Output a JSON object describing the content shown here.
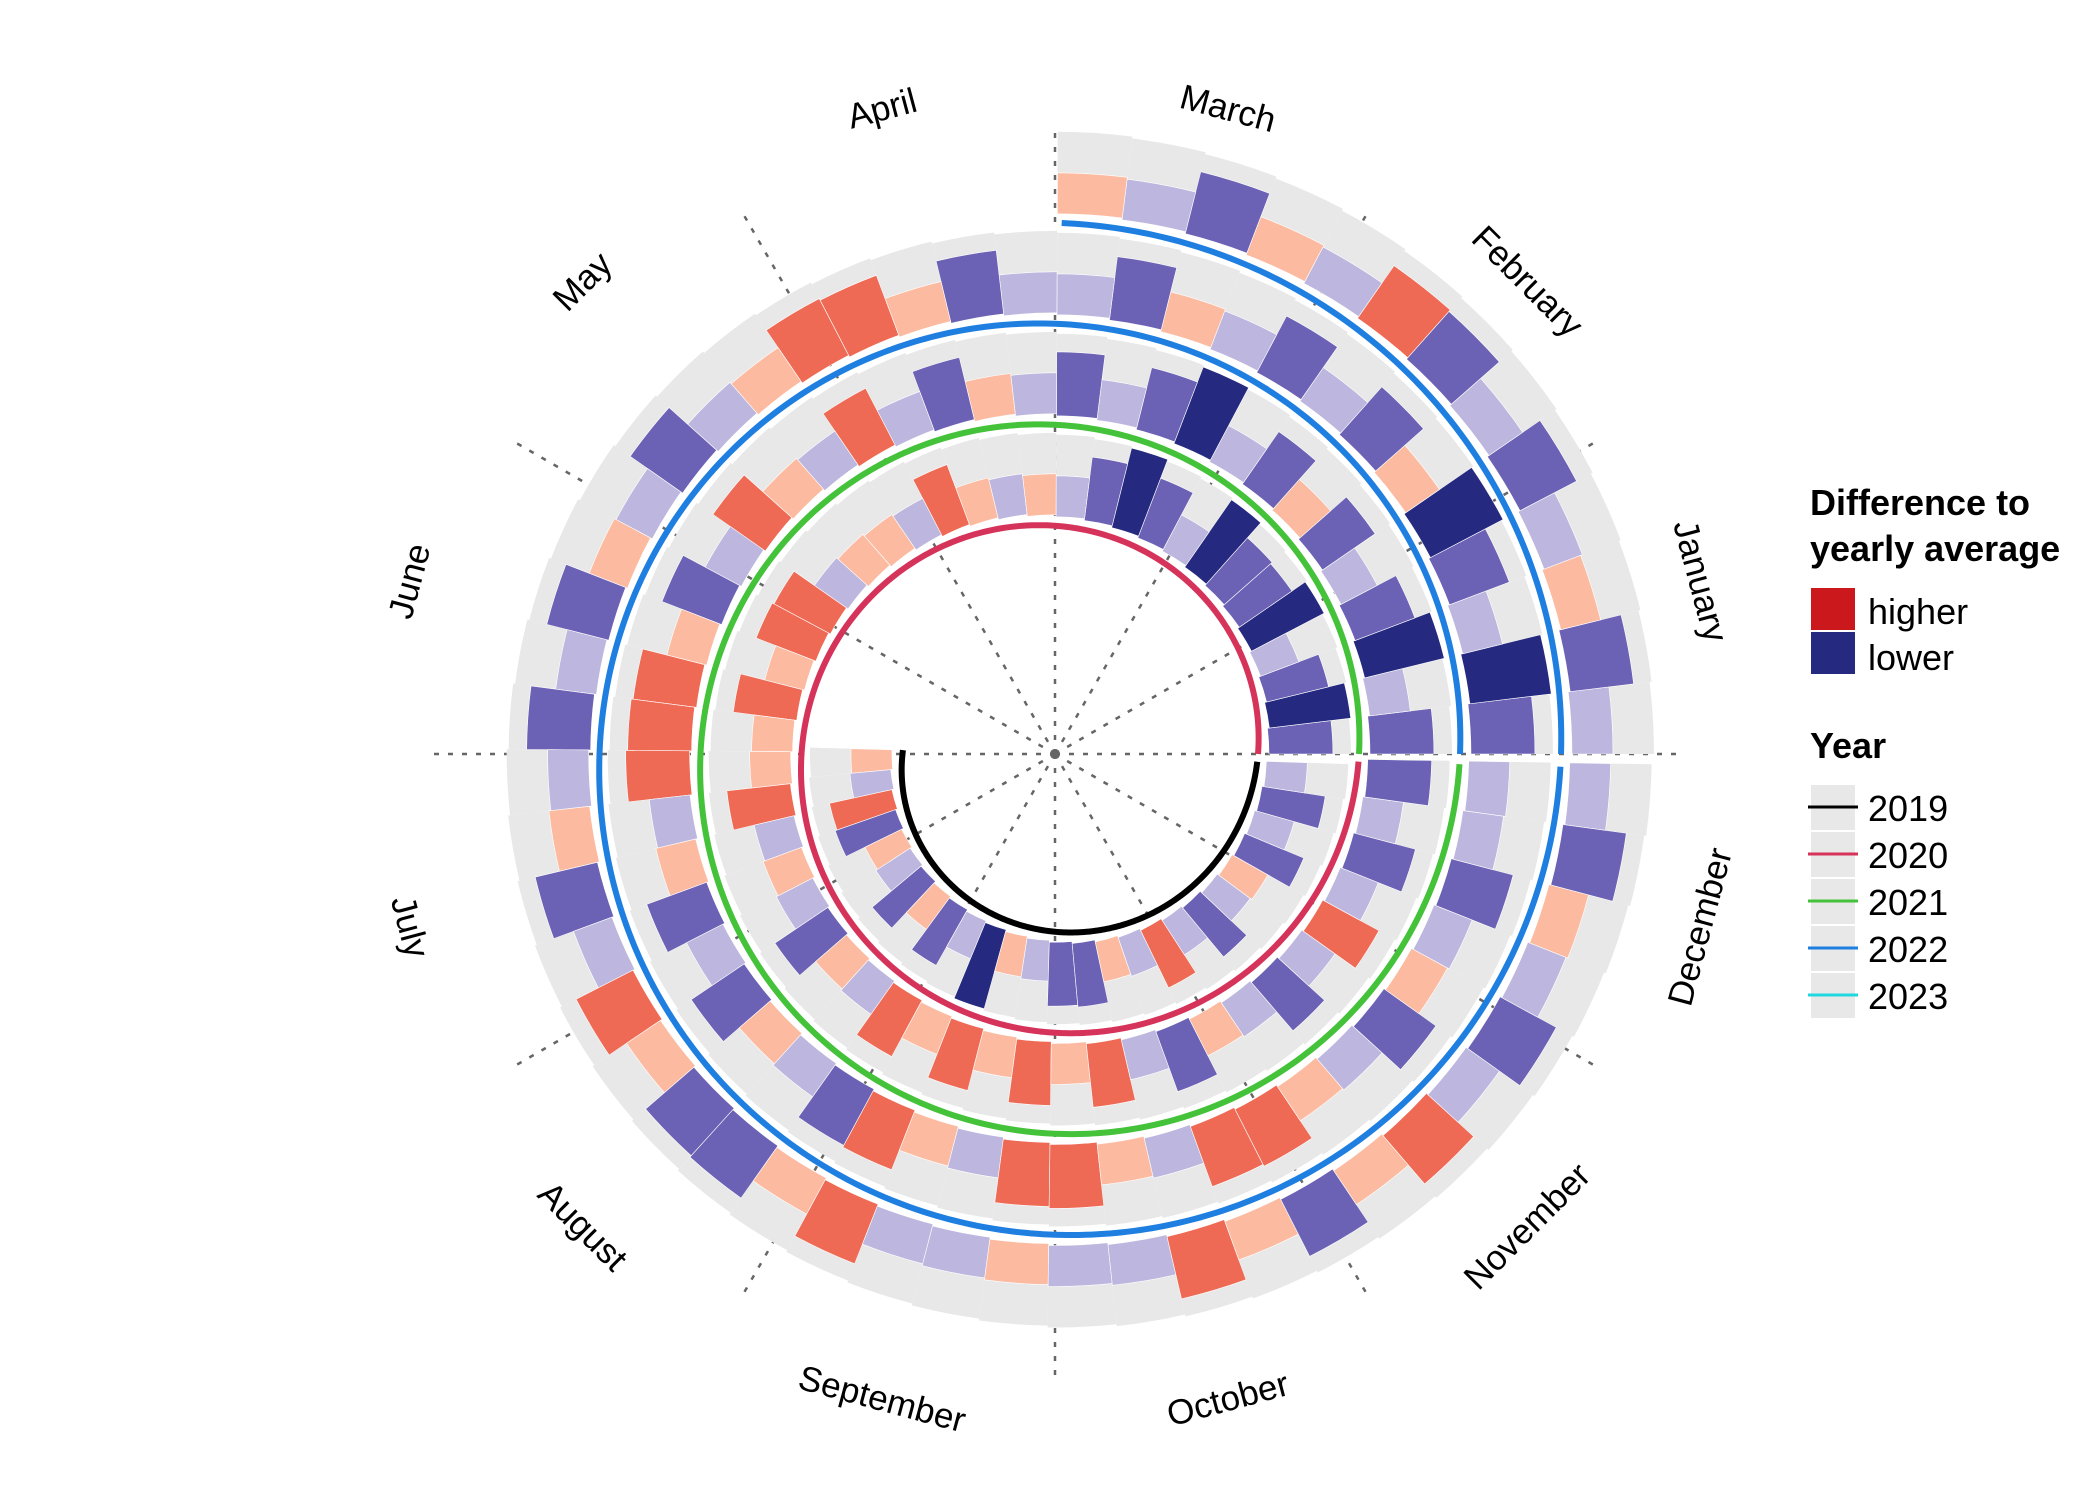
{
  "chart_data": {
    "type": "spiral-bar",
    "months": [
      "January",
      "February",
      "March",
      "April",
      "May",
      "June",
      "July",
      "August",
      "September",
      "October",
      "November",
      "December"
    ],
    "fill_legend": {
      "title_lines": [
        "Difference to",
        "yearly average"
      ],
      "entries": [
        {
          "label": "higher",
          "color": "#cb181d"
        },
        {
          "label": "lower",
          "color": "#252a80"
        }
      ]
    },
    "year_legend": {
      "title": "Year",
      "entries": [
        {
          "label": "2019",
          "color": "#000000"
        },
        {
          "label": "2020",
          "color": "#d6335a"
        },
        {
          "label": "2021",
          "color": "#44c23a"
        },
        {
          "label": "2022",
          "color": "#1f7fe0"
        },
        {
          "label": "2023",
          "color": "#22d8e0"
        }
      ]
    },
    "value_scale": {
      "min": -3,
      "max": 3,
      "neutral_color": "#e8e8e8",
      "higher_colors": [
        "#fcbba1",
        "#ef6a55",
        "#cb181d"
      ],
      "lower_colors": [
        "#bdb6de",
        "#6b62b5",
        "#252a80"
      ]
    },
    "series": [
      {
        "year": 2019,
        "start": "2019-07-01",
        "interval": "week",
        "values": [
          1,
          -1,
          2,
          -2,
          1,
          -1,
          -2,
          1,
          -2,
          -1,
          -3,
          1,
          -1,
          -2,
          -2,
          1,
          -1,
          2,
          -1,
          -2,
          -1,
          1,
          -2,
          -1,
          -2,
          -1
        ]
      },
      {
        "year": 2020,
        "start": "2020-01-01",
        "interval": "week",
        "values": [
          -2,
          -3,
          -2,
          -1,
          -3,
          -2,
          -2,
          -3,
          -1,
          -2,
          -3,
          -2,
          -1,
          1,
          -1,
          1,
          2,
          -1,
          1,
          1,
          -1,
          2,
          2,
          1,
          2,
          1,
          1,
          2,
          -1,
          1,
          -1,
          -2,
          1,
          -1,
          2,
          1,
          2,
          1,
          2,
          1,
          2,
          -1,
          -2,
          1,
          -1,
          -2,
          -1,
          2,
          -1,
          -2,
          -1,
          -2
        ]
      },
      {
        "year": 2021,
        "start": "2021-01-01",
        "interval": "week",
        "values": [
          -2,
          -1,
          -3,
          -2,
          -1,
          -2,
          1,
          -2,
          -1,
          -3,
          -2,
          -1,
          -2,
          -1,
          1,
          -2,
          -1,
          2,
          -1,
          1,
          2,
          -1,
          -2,
          1,
          2,
          2,
          2,
          -1,
          1,
          -2,
          -1,
          -2,
          1,
          -1,
          -2,
          2,
          1,
          -1,
          2,
          2,
          1,
          -1,
          2,
          2,
          1,
          -1,
          -2,
          1,
          -1,
          -2,
          -1,
          -1
        ]
      },
      {
        "year": 2022,
        "start": "2022-01-01",
        "interval": "week",
        "values": [
          -2,
          -3,
          -1,
          -2,
          -3,
          1,
          -2,
          -1,
          -2,
          -1,
          1,
          -2,
          -1,
          -1,
          -2,
          1,
          2,
          2,
          1,
          -1,
          -2,
          -1,
          1,
          -2,
          -1,
          -2,
          -1,
          1,
          -2,
          -1,
          2,
          1,
          -2,
          -2,
          1,
          2,
          -1,
          -1,
          1,
          -1,
          -1,
          2,
          1,
          -2,
          1,
          2,
          -1,
          -2,
          -1,
          1,
          -2,
          -1
        ]
      },
      {
        "year": 2023,
        "start": "2023-01-01",
        "interval": "week",
        "values": [
          -1,
          -2,
          1,
          -1,
          -2,
          -1,
          -2,
          2,
          -1,
          1,
          -2,
          -1,
          1
        ]
      }
    ]
  }
}
